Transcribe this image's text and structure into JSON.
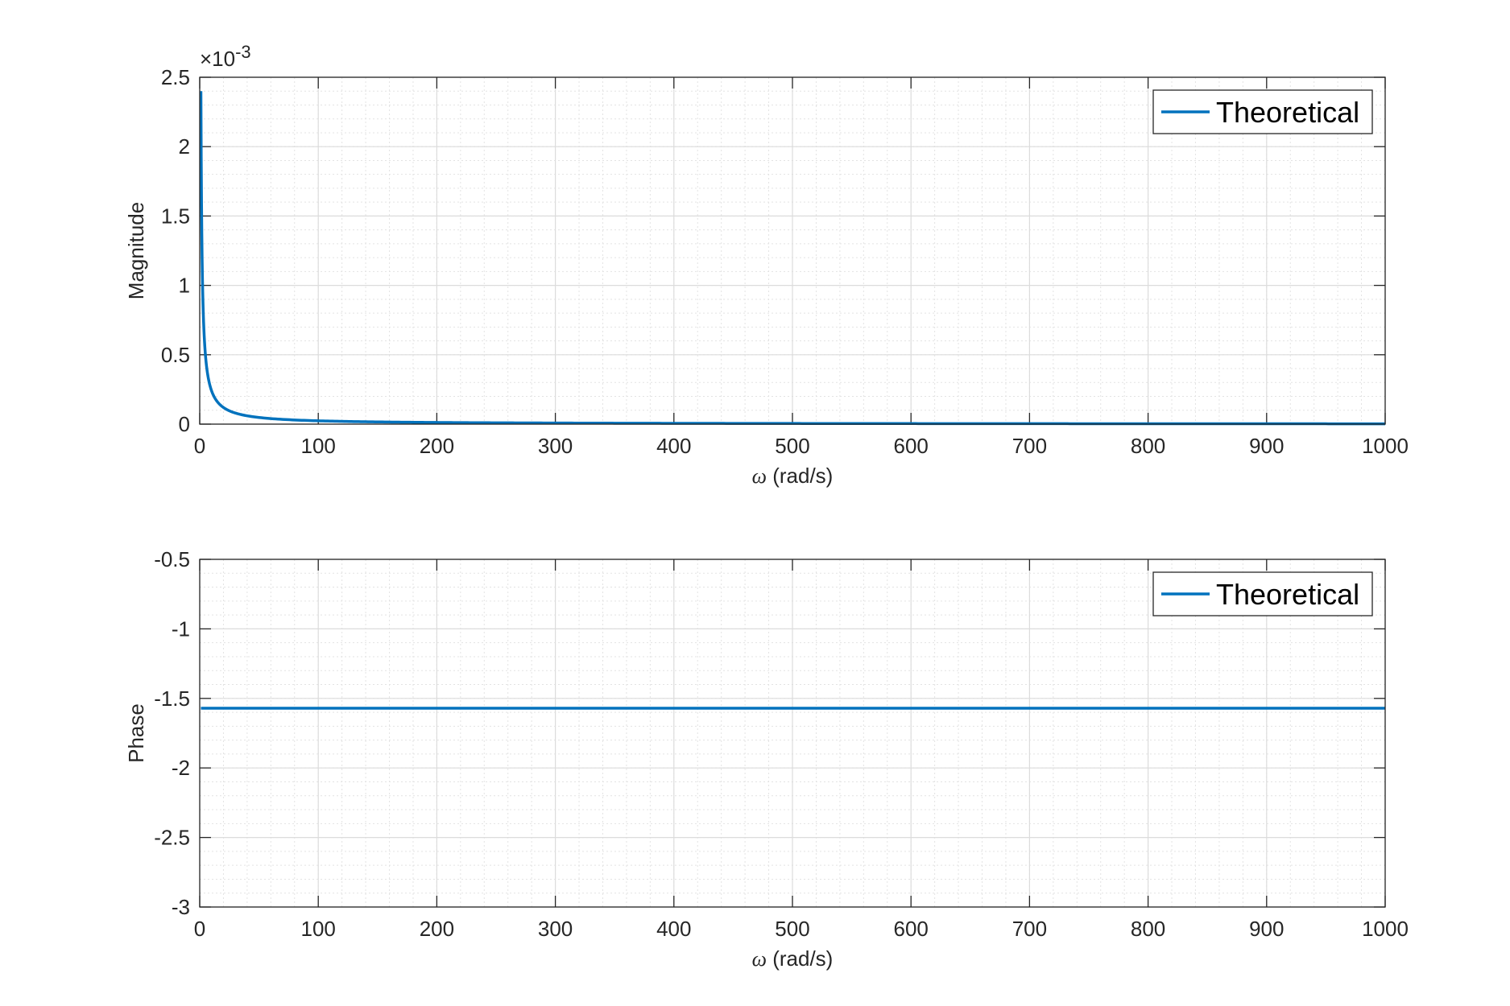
{
  "chart_data": [
    {
      "type": "line",
      "xlabel_symbol": "ω",
      "xlabel_unit": "(rad/s)",
      "ylabel": "Magnitude",
      "xlim": [
        0,
        1000
      ],
      "ylim": [
        0,
        0.0025
      ],
      "y_exponent_multiplier": "×10",
      "y_exponent": "-3",
      "x_ticks": [
        0,
        100,
        200,
        300,
        400,
        500,
        600,
        700,
        800,
        900,
        1000
      ],
      "y_tick_labels": [
        "0",
        "0.5",
        "1",
        "1.5",
        "2",
        "2.5"
      ],
      "y_tick_values": [
        0,
        0.0005,
        0.001,
        0.0015,
        0.002,
        0.0025
      ],
      "grid": true,
      "minor_grid": true,
      "legend_position": "top-right",
      "series": [
        {
          "name": "Theoretical",
          "color": "#0072BD",
          "x": [
            1,
            2,
            3,
            4,
            5,
            6,
            8,
            10,
            12,
            15,
            20,
            25,
            30,
            40,
            50,
            60,
            80,
            100,
            150,
            200,
            300,
            400,
            500,
            600,
            700,
            800,
            900,
            1000
          ],
          "y": [
            0.0024,
            0.0012,
            0.0008,
            0.0006,
            0.00048,
            0.0004,
            0.0003,
            0.00024,
            0.0002,
            0.00016,
            0.00012,
            9.6e-05,
            8e-05,
            6e-05,
            4.8e-05,
            4e-05,
            3e-05,
            2.4e-05,
            1.6e-05,
            1.2e-05,
            8e-06,
            6e-06,
            4.8e-06,
            4e-06,
            3.4e-06,
            3e-06,
            2.7e-06,
            2.4e-06
          ]
        }
      ]
    },
    {
      "type": "line",
      "xlabel_symbol": "ω",
      "xlabel_unit": "(rad/s)",
      "ylabel": "Phase",
      "xlim": [
        0,
        1000
      ],
      "ylim": [
        -3,
        -0.5
      ],
      "x_ticks": [
        0,
        100,
        200,
        300,
        400,
        500,
        600,
        700,
        800,
        900,
        1000
      ],
      "y_tick_labels": [
        "-3",
        "-2.5",
        "-2",
        "-1.5",
        "-1",
        "-0.5"
      ],
      "y_tick_values": [
        -3,
        -2.5,
        -2,
        -1.5,
        -1,
        -0.5
      ],
      "grid": true,
      "minor_grid": true,
      "legend_position": "top-right",
      "series": [
        {
          "name": "Theoretical",
          "color": "#0072BD",
          "x": [
            1,
            1000
          ],
          "y": [
            -1.5708,
            -1.5708
          ]
        }
      ]
    }
  ]
}
